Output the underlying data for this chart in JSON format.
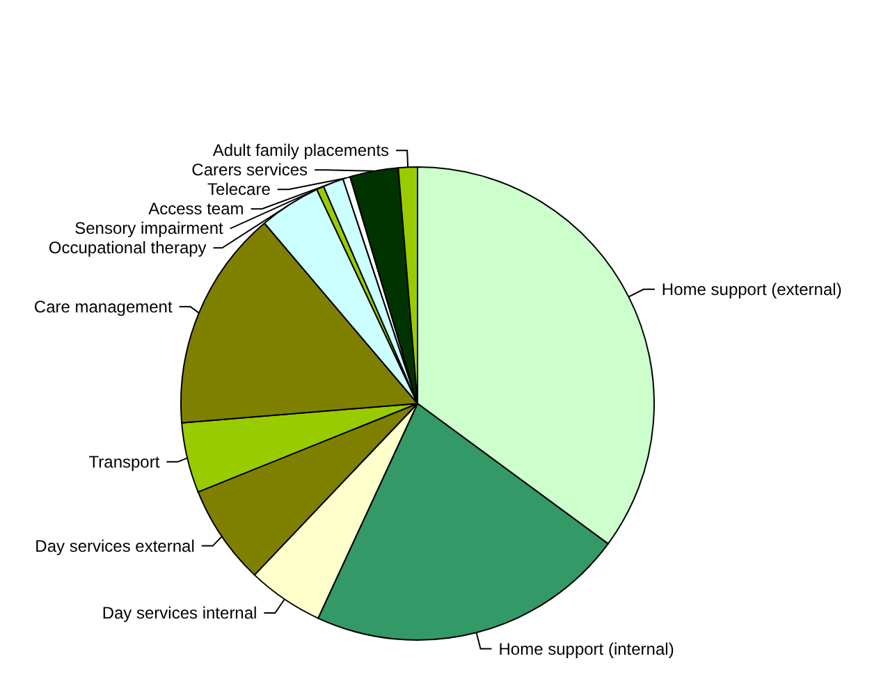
{
  "chart_data": {
    "type": "pie",
    "categories": [
      "Home support (external)",
      "Home support (internal)",
      "Day services internal",
      "Day services external",
      "Transport",
      "Care management",
      "Occupational therapy",
      "Sensory impairment",
      "Access team",
      "Telecare",
      "Carers services",
      "Adult family placements"
    ],
    "values": [
      35.1,
      21.8,
      5.2,
      6.8,
      4.8,
      15.1,
      4.2,
      0.5,
      1.4,
      0.5,
      3.3,
      1.3
    ],
    "colors": [
      "#ccffcc",
      "#339966",
      "#ffffcc",
      "#808000",
      "#99cc00",
      "#808000",
      "#ccffff",
      "#99cc00",
      "#ccffff",
      "#ffffff",
      "#003300",
      "#99cc00"
    ],
    "legend": false
  }
}
